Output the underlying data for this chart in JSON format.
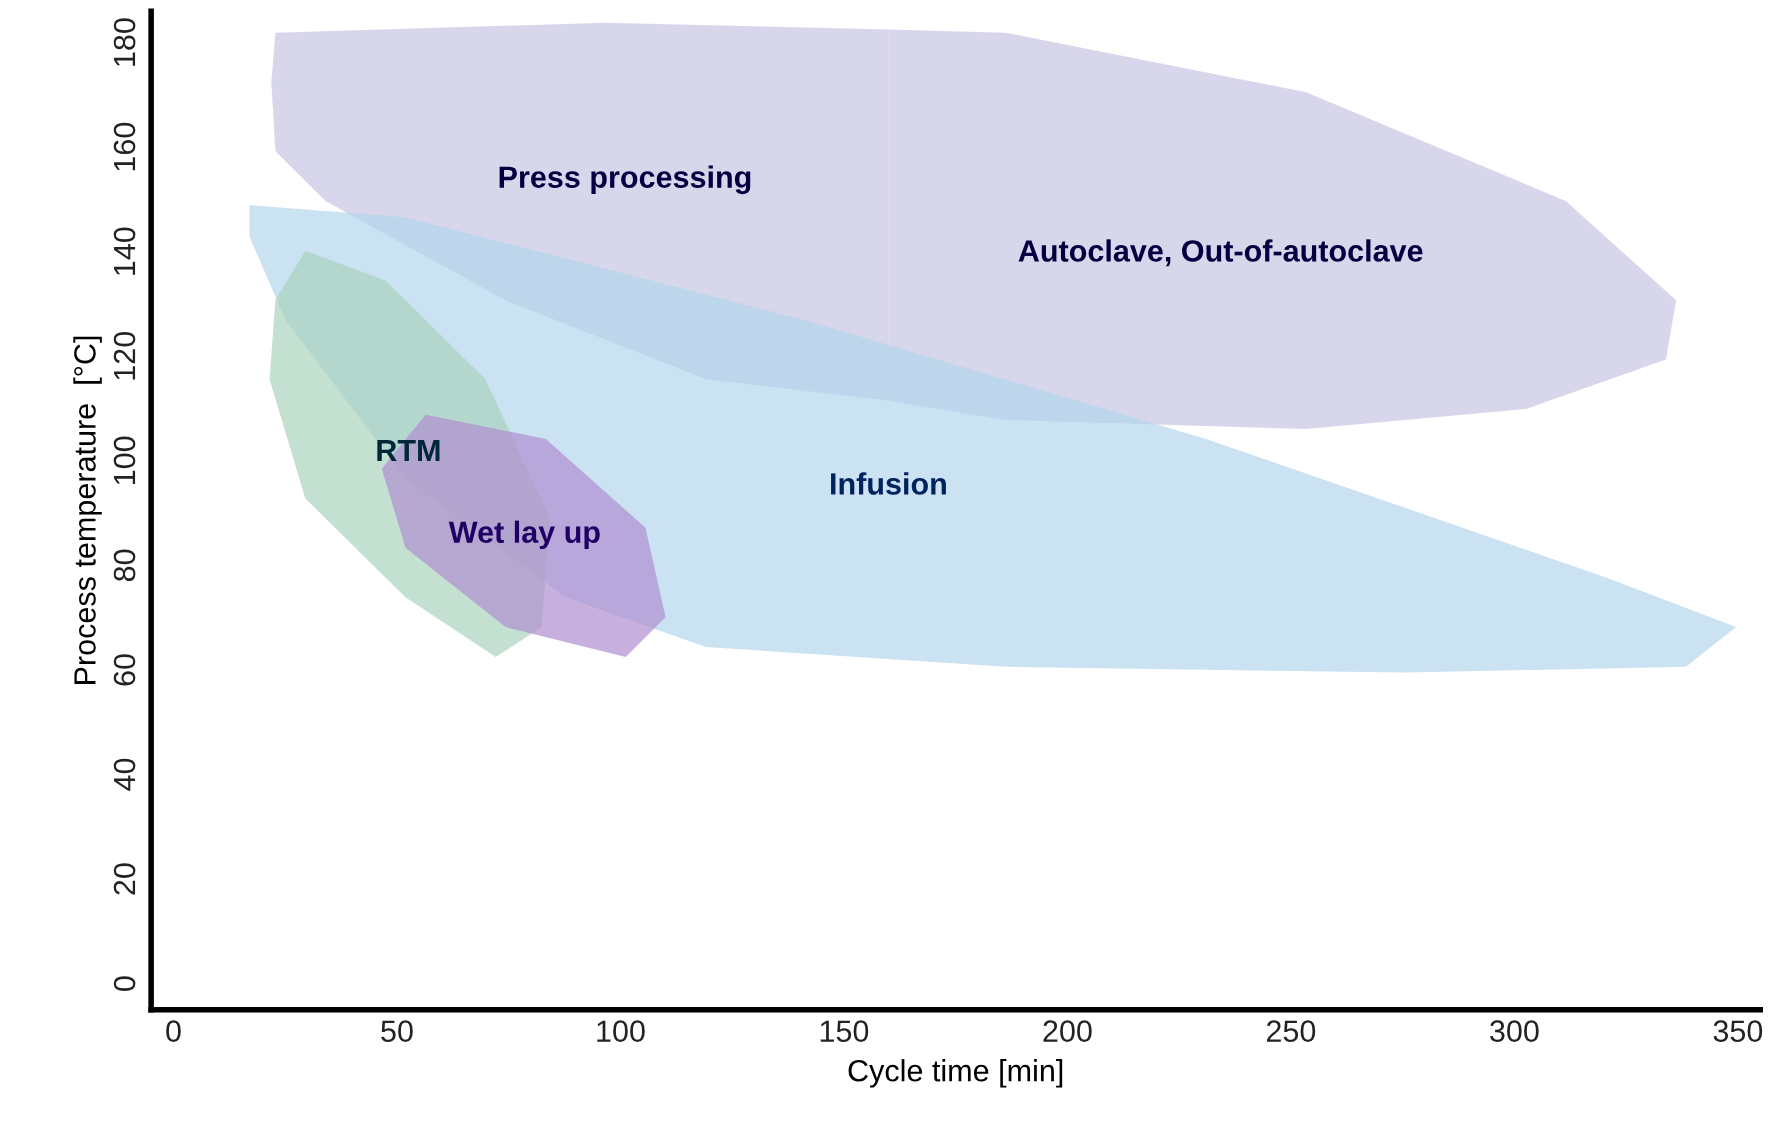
{
  "chart_data": {
    "type": "area",
    "xlabel": "Cycle time [min]",
    "ylabel": "Process temperature  [°C]",
    "xlim": [
      -5,
      355
    ],
    "ylim": [
      -5,
      186
    ],
    "xticks": [
      0,
      50,
      100,
      150,
      200,
      250,
      300,
      350
    ],
    "yticks": [
      0,
      20,
      40,
      60,
      80,
      100,
      120,
      140,
      160,
      180
    ],
    "grid": false,
    "legend": false,
    "series": [
      {
        "name": "Press processing",
        "color": "#c8c5e2",
        "x": [
          22.8,
          96.7,
          160,
          160,
          119.1,
          74.3,
          34.0,
          22.8,
          21.9
        ],
        "values": [
          181.9,
          183.8,
          182.5,
          111.5,
          115.6,
          130.7,
          149.7,
          159.2,
          172.4
        ]
      },
      {
        "name": "Autoclave, Out-of-autoclave",
        "color": "#c8c5e2",
        "x": [
          160,
          186.2,
          253.4,
          311.5,
          336.2,
          333.9,
          302.6,
          253.4,
          186.2,
          160
        ],
        "values": [
          182.5,
          181.9,
          170.5,
          149.7,
          130.7,
          119.4,
          109.9,
          106.1,
          107.8,
          111.5
        ]
      },
      {
        "name": "Infusion",
        "color": "#b3d6ec",
        "x": [
          17.0,
          51.9,
          141.4,
          231.0,
          320.5,
          349.6,
          338.4,
          275.7,
          186.2,
          119.1,
          87.7,
          51.9,
          25.1,
          17.0
        ],
        "values": [
          148.9,
          146.6,
          126.9,
          104.2,
          77.7,
          68.2,
          60.6,
          59.5,
          60.6,
          64.4,
          73.9,
          96.6,
          126.9,
          142.9
        ]
      },
      {
        "name": "RTM",
        "color": "#a9d3bd",
        "x": [
          29.5,
          22.8,
          21.5,
          29.5,
          51.9,
          72.1,
          82.4,
          84.2,
          69.8,
          47.4
        ],
        "values": [
          140.2,
          130.7,
          115.6,
          92.8,
          73.9,
          62.5,
          68.2,
          89.0,
          115.6,
          134.5
        ]
      },
      {
        "name": "Wet lay up",
        "color": "#b08fd0",
        "x": [
          56.4,
          46.6,
          51.9,
          74.3,
          101.2,
          110.1,
          105.6,
          83.3
        ],
        "values": [
          108.8,
          98.5,
          83.4,
          68.2,
          62.5,
          70.1,
          87.2,
          104.2
        ]
      }
    ]
  }
}
